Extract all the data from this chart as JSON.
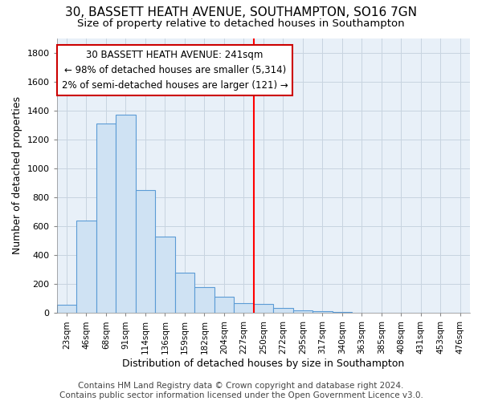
{
  "title": "30, BASSETT HEATH AVENUE, SOUTHAMPTON, SO16 7GN",
  "subtitle": "Size of property relative to detached houses in Southampton",
  "xlabel": "Distribution of detached houses by size in Southampton",
  "ylabel": "Number of detached properties",
  "footer": "Contains HM Land Registry data © Crown copyright and database right 2024.\nContains public sector information licensed under the Open Government Licence v3.0.",
  "categories": [
    "23sqm",
    "46sqm",
    "68sqm",
    "91sqm",
    "114sqm",
    "136sqm",
    "159sqm",
    "182sqm",
    "204sqm",
    "227sqm",
    "250sqm",
    "272sqm",
    "295sqm",
    "317sqm",
    "340sqm",
    "363sqm",
    "385sqm",
    "408sqm",
    "431sqm",
    "453sqm",
    "476sqm"
  ],
  "values": [
    55,
    640,
    1310,
    1370,
    850,
    530,
    280,
    180,
    110,
    70,
    65,
    35,
    20,
    10,
    5,
    0,
    0,
    0,
    0,
    0,
    0
  ],
  "bar_color": "#cfe2f3",
  "bar_edge_color": "#5b9bd5",
  "vline_color": "#ff0000",
  "annotation_line1": "30 BASSETT HEATH AVENUE: 241sqm",
  "annotation_line2": "← 98% of detached houses are smaller (5,314)",
  "annotation_line3": "2% of semi-detached houses are larger (121) →",
  "annotation_box_color": "#ffffff",
  "annotation_box_edge": "#cc0000",
  "vline_position": 10.0,
  "ylim": [
    0,
    1900
  ],
  "yticks": [
    0,
    200,
    400,
    600,
    800,
    1000,
    1200,
    1400,
    1600,
    1800
  ],
  "background_color": "#ffffff",
  "plot_background": "#e8f0f8",
  "grid_color": "#c8d4e0",
  "title_fontsize": 11,
  "subtitle_fontsize": 9.5,
  "xlabel_fontsize": 9,
  "ylabel_fontsize": 9,
  "footer_fontsize": 7.5,
  "annot_fontsize": 8.5
}
